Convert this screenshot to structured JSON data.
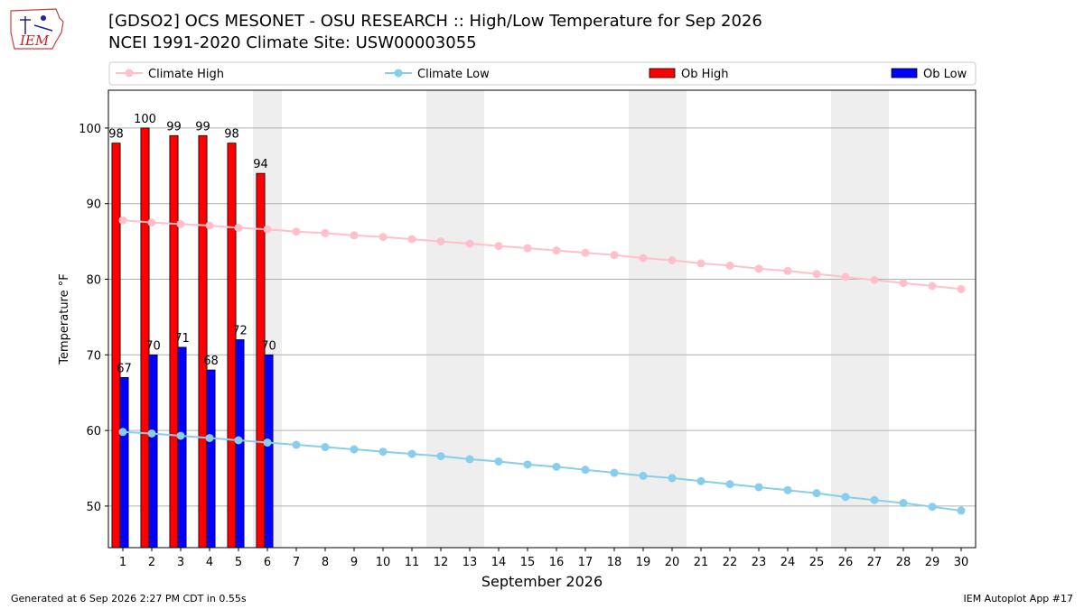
{
  "header": {
    "title_line1": "[GDSO2] OCS MESONET - OSU RESEARCH :: High/Low Temperature for Sep 2026",
    "title_line2": "NCEI 1991-2020 Climate Site: USW00003055"
  },
  "logo": {
    "text": "IEM"
  },
  "footer": {
    "generated": "Generated at 6 Sep 2026 2:27 PM CDT in 0.55s",
    "app": "IEM Autoplot App #17"
  },
  "colors": {
    "climate_high": "#ffc0cb",
    "climate_low": "#87ceeb",
    "ob_high": "#ff0000",
    "ob_low": "#0000ff",
    "weekend_shade": "#eeeeee",
    "grid": "#b0b0b0"
  },
  "chart_data": {
    "type": "bar",
    "xlabel": "September 2026",
    "ylabel": "Temperature °F",
    "ylim": [
      44.5,
      105
    ],
    "xlim": [
      0.5,
      30.5
    ],
    "yticks": [
      50,
      60,
      70,
      80,
      90,
      100
    ],
    "grid": "horizontal",
    "legend_placement": "top",
    "legend": [
      "Climate High",
      "Climate Low",
      "Ob High",
      "Ob Low"
    ],
    "weekend_shade_ranges": [
      [
        5.5,
        6.5
      ],
      [
        11.5,
        13.5
      ],
      [
        18.5,
        20.5
      ],
      [
        25.5,
        27.5
      ]
    ],
    "x": [
      1,
      2,
      3,
      4,
      5,
      6,
      7,
      8,
      9,
      10,
      11,
      12,
      13,
      14,
      15,
      16,
      17,
      18,
      19,
      20,
      21,
      22,
      23,
      24,
      25,
      26,
      27,
      28,
      29,
      30
    ],
    "series": [
      {
        "name": "Climate High",
        "kind": "line",
        "color": "#ffc0cb",
        "values": [
          87.8,
          87.5,
          87.3,
          87.1,
          86.8,
          86.6,
          86.3,
          86.1,
          85.8,
          85.6,
          85.3,
          85.0,
          84.7,
          84.4,
          84.1,
          83.8,
          83.5,
          83.2,
          82.8,
          82.5,
          82.1,
          81.8,
          81.4,
          81.1,
          80.7,
          80.3,
          79.9,
          79.5,
          79.1,
          78.7
        ]
      },
      {
        "name": "Climate Low",
        "kind": "line",
        "color": "#87ceeb",
        "values": [
          59.8,
          59.6,
          59.3,
          59.0,
          58.7,
          58.4,
          58.1,
          57.8,
          57.5,
          57.2,
          56.9,
          56.6,
          56.2,
          55.9,
          55.5,
          55.2,
          54.8,
          54.4,
          54.0,
          53.7,
          53.3,
          52.9,
          52.5,
          52.1,
          51.7,
          51.2,
          50.8,
          50.4,
          49.9,
          49.4
        ]
      },
      {
        "name": "Ob High",
        "kind": "bar",
        "color": "#ff0000",
        "x": [
          1,
          2,
          3,
          4,
          5,
          6
        ],
        "values": [
          98,
          100,
          99,
          99,
          98,
          94
        ]
      },
      {
        "name": "Ob Low",
        "kind": "bar",
        "color": "#0000ff",
        "x": [
          1,
          2,
          3,
          4,
          5,
          6
        ],
        "values": [
          67,
          70,
          71,
          68,
          72,
          70
        ]
      }
    ]
  }
}
